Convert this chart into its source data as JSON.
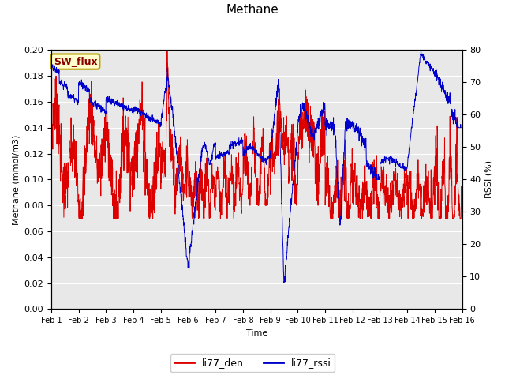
{
  "title": "Methane",
  "xlabel": "Time",
  "ylabel_left": "Methane (mmol/m3)",
  "ylabel_right": "RSSI (%)",
  "legend_label1": "li77_den",
  "legend_label2": "li77_rssi",
  "box_label": "SW_flux",
  "ylim_left": [
    0.0,
    0.2
  ],
  "ylim_right": [
    0,
    80
  ],
  "yticks_left": [
    0.0,
    0.02,
    0.04,
    0.06,
    0.08,
    0.1,
    0.12,
    0.14,
    0.16,
    0.18,
    0.2
  ],
  "yticks_right": [
    0,
    10,
    20,
    30,
    40,
    50,
    60,
    70,
    80
  ],
  "color_red": "#dd0000",
  "color_blue": "#0000cc",
  "bg_color": "#e8e8e8",
  "box_facecolor": "#ffffcc",
  "box_edgecolor": "#b8a000",
  "n_points": 2000,
  "days": 15,
  "fig_width": 6.4,
  "fig_height": 4.8,
  "dpi": 100
}
